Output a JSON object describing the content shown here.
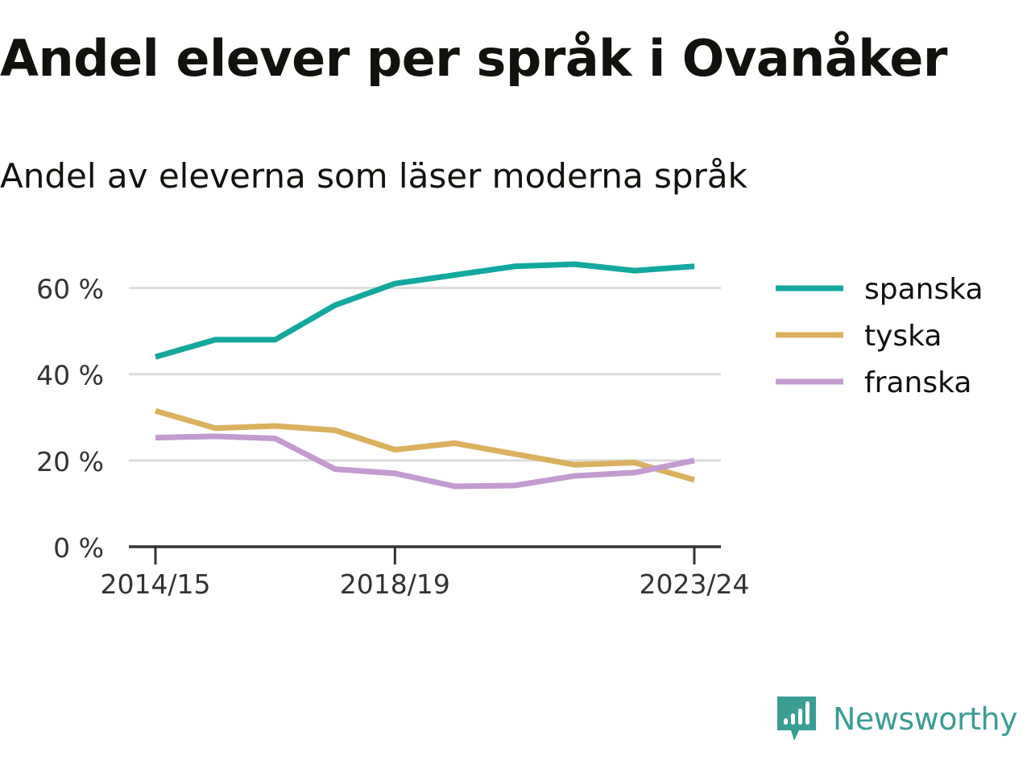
{
  "header": {
    "title": "Andel elever per språk i Ovanåker",
    "subtitle": "Andel av eleverna som läser moderna språk"
  },
  "chart_data": {
    "type": "line",
    "title": "Andel elever per språk i Ovanåker",
    "subtitle": "Andel av eleverna som läser moderna språk",
    "x": [
      "2014/15",
      "2015/16",
      "2016/17",
      "2017/18",
      "2018/19",
      "2019/20",
      "2020/21",
      "2021/22",
      "2022/23",
      "2023/24"
    ],
    "x_tick_labels": [
      "2014/15",
      "2018/19",
      "2023/24"
    ],
    "y_tick_values": [
      0,
      20,
      40,
      60
    ],
    "y_tick_labels": [
      "0 %",
      "20 %",
      "40 %",
      "60 %"
    ],
    "ylim": [
      0,
      70
    ],
    "grid": true,
    "legend_position": "right",
    "series": [
      {
        "name": "spanska",
        "color": "#13a89e",
        "values": [
          44,
          48,
          48,
          56,
          61,
          63,
          65,
          65.5,
          64,
          65
        ]
      },
      {
        "name": "tyska",
        "color": "#dbb05e",
        "values": [
          31.5,
          27.5,
          28,
          27,
          22.5,
          24,
          21.5,
          19,
          19.5,
          15.5
        ]
      },
      {
        "name": "franska",
        "color": "#c39bd0",
        "values": [
          25.3,
          25.6,
          25.1,
          18,
          17,
          14,
          14.2,
          16.4,
          17.2,
          20
        ]
      }
    ]
  },
  "brand": {
    "name": "Newsworthy",
    "logo_icon": "newsworthy-logo-icon",
    "color": "#3a9e94"
  }
}
